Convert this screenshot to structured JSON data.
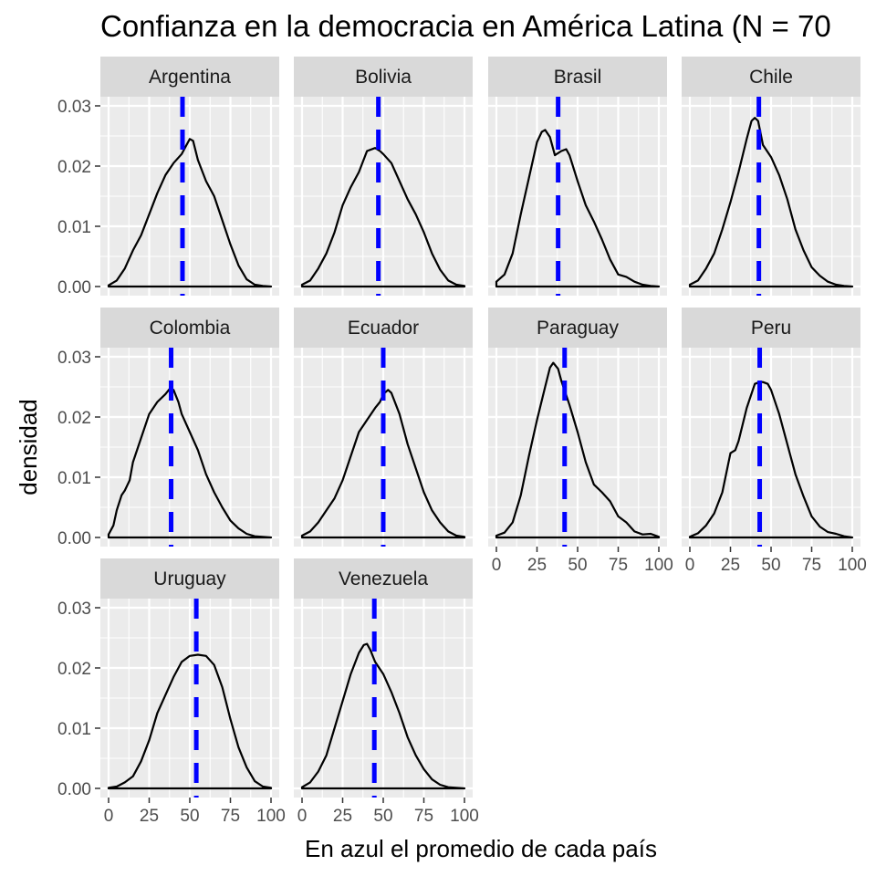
{
  "chart_data": {
    "type": "density",
    "title": "Confianza en la democracia en América Latina (N = 70",
    "xlabel": "En azul el promedio de cada país",
    "ylabel": "densidad",
    "xlim": [
      0,
      100
    ],
    "ylim": [
      0,
      0.03
    ],
    "x_ticks": [
      0,
      25,
      50,
      75,
      100
    ],
    "x_tick_labels": [
      "0",
      "25",
      "50",
      "75",
      "100"
    ],
    "y_ticks": [
      0,
      0.01,
      0.02,
      0.03
    ],
    "y_tick_labels": [
      "0.00",
      "0.01",
      "0.02",
      "0.03"
    ],
    "grid": true,
    "facet_columns": 4,
    "mean_line_color": "#0000ff",
    "curve_color": "#000000",
    "panel_background": "#ebebeb",
    "strip_background": "#d9d9d9",
    "panels": [
      {
        "name": "Argentina",
        "mean": 45.5,
        "x": [
          0,
          5,
          10,
          15,
          20,
          25,
          30,
          35,
          40,
          45,
          48,
          50,
          52,
          55,
          60,
          65,
          70,
          75,
          80,
          85,
          90,
          95,
          100
        ],
        "y": [
          0.0002,
          0.001,
          0.003,
          0.006,
          0.0085,
          0.012,
          0.0155,
          0.0185,
          0.0205,
          0.022,
          0.0235,
          0.0245,
          0.0242,
          0.021,
          0.0175,
          0.015,
          0.011,
          0.007,
          0.0035,
          0.0012,
          0.0003,
          0.0001,
          0.0
        ]
      },
      {
        "name": "Bolivia",
        "mean": 47,
        "x": [
          0,
          5,
          10,
          15,
          20,
          25,
          30,
          35,
          40,
          45,
          48,
          50,
          55,
          60,
          65,
          70,
          75,
          80,
          85,
          90,
          95,
          100
        ],
        "y": [
          0.0003,
          0.001,
          0.003,
          0.0055,
          0.009,
          0.0135,
          0.0165,
          0.019,
          0.0225,
          0.023,
          0.0225,
          0.022,
          0.0205,
          0.0175,
          0.0145,
          0.012,
          0.009,
          0.0055,
          0.0028,
          0.001,
          0.0003,
          0.0001
        ]
      },
      {
        "name": "Brasil",
        "mean": 38,
        "x": [
          0,
          5,
          10,
          15,
          20,
          25,
          28,
          30,
          33,
          36,
          40,
          43,
          45,
          50,
          55,
          60,
          65,
          70,
          75,
          80,
          85,
          90,
          95,
          100
        ],
        "y": [
          0.0008,
          0.002,
          0.0055,
          0.012,
          0.018,
          0.024,
          0.0257,
          0.026,
          0.0248,
          0.0218,
          0.0225,
          0.0228,
          0.0218,
          0.0175,
          0.0135,
          0.0108,
          0.0078,
          0.0045,
          0.002,
          0.0016,
          0.0008,
          0.0003,
          0.0001,
          0.0
        ]
      },
      {
        "name": "Chile",
        "mean": 42.5,
        "x": [
          0,
          5,
          10,
          15,
          20,
          25,
          30,
          35,
          38,
          40,
          42,
          45,
          50,
          55,
          60,
          65,
          70,
          75,
          80,
          85,
          90,
          95,
          100
        ],
        "y": [
          0.0003,
          0.001,
          0.003,
          0.0055,
          0.0095,
          0.014,
          0.019,
          0.0245,
          0.0275,
          0.028,
          0.0275,
          0.0235,
          0.0215,
          0.0185,
          0.0145,
          0.0095,
          0.006,
          0.0032,
          0.0018,
          0.0008,
          0.0003,
          0.0001,
          0.0
        ]
      },
      {
        "name": "Colombia",
        "mean": 38.5,
        "x": [
          0,
          3,
          5,
          8,
          10,
          13,
          15,
          20,
          25,
          30,
          35,
          38,
          40,
          43,
          45,
          50,
          55,
          60,
          65,
          70,
          75,
          80,
          85,
          90,
          95,
          100
        ],
        "y": [
          0.0005,
          0.002,
          0.0045,
          0.007,
          0.0078,
          0.0095,
          0.0125,
          0.0165,
          0.0205,
          0.0225,
          0.0238,
          0.0248,
          0.0245,
          0.0225,
          0.0205,
          0.0175,
          0.0145,
          0.0105,
          0.0075,
          0.005,
          0.0028,
          0.0015,
          0.0006,
          0.0002,
          0.0001,
          0.0
        ]
      },
      {
        "name": "Ecuador",
        "mean": 50,
        "x": [
          0,
          5,
          10,
          15,
          20,
          25,
          30,
          35,
          40,
          45,
          48,
          50,
          53,
          55,
          60,
          65,
          70,
          75,
          80,
          85,
          90,
          95,
          100
        ],
        "y": [
          0.0003,
          0.001,
          0.0025,
          0.0045,
          0.0065,
          0.0095,
          0.0135,
          0.0175,
          0.0195,
          0.0215,
          0.0225,
          0.0238,
          0.0245,
          0.024,
          0.0205,
          0.0155,
          0.0115,
          0.0075,
          0.0045,
          0.0025,
          0.001,
          0.0003,
          0.0001
        ]
      },
      {
        "name": "Paraguay",
        "mean": 42,
        "x": [
          0,
          5,
          10,
          15,
          20,
          25,
          30,
          33,
          35,
          38,
          40,
          45,
          50,
          55,
          60,
          65,
          70,
          75,
          80,
          85,
          90,
          95,
          100
        ],
        "y": [
          0.0003,
          0.0008,
          0.0025,
          0.007,
          0.0135,
          0.0195,
          0.025,
          0.0282,
          0.029,
          0.028,
          0.026,
          0.022,
          0.0175,
          0.0125,
          0.0088,
          0.0075,
          0.006,
          0.0035,
          0.0025,
          0.001,
          0.0005,
          0.0006,
          0.0001
        ]
      },
      {
        "name": "Peru",
        "mean": 43,
        "x": [
          0,
          5,
          10,
          15,
          20,
          25,
          28,
          30,
          35,
          40,
          43,
          45,
          48,
          50,
          55,
          60,
          65,
          70,
          75,
          80,
          85,
          90,
          95,
          100
        ],
        "y": [
          0.0001,
          0.0007,
          0.002,
          0.004,
          0.0075,
          0.014,
          0.0145,
          0.016,
          0.0215,
          0.0255,
          0.0258,
          0.0258,
          0.0255,
          0.0245,
          0.0205,
          0.0155,
          0.0105,
          0.0068,
          0.0035,
          0.0018,
          0.0009,
          0.0006,
          0.0002,
          0.0
        ]
      },
      {
        "name": "Uruguay",
        "mean": 54,
        "x": [
          0,
          5,
          10,
          15,
          20,
          25,
          30,
          35,
          40,
          45,
          50,
          55,
          60,
          65,
          70,
          75,
          80,
          85,
          90,
          95,
          100
        ],
        "y": [
          0.0001,
          0.0003,
          0.001,
          0.002,
          0.0045,
          0.008,
          0.0125,
          0.0155,
          0.0185,
          0.021,
          0.022,
          0.0222,
          0.022,
          0.0205,
          0.0168,
          0.0115,
          0.0068,
          0.0035,
          0.0012,
          0.0003,
          0.0001
        ]
      },
      {
        "name": "Venezuela",
        "mean": 44.5,
        "x": [
          0,
          5,
          10,
          15,
          20,
          25,
          30,
          35,
          38,
          40,
          42,
          45,
          50,
          55,
          60,
          65,
          70,
          75,
          80,
          85,
          90,
          95,
          100
        ],
        "y": [
          0.0002,
          0.001,
          0.0028,
          0.0055,
          0.01,
          0.0145,
          0.019,
          0.0225,
          0.0238,
          0.024,
          0.023,
          0.021,
          0.019,
          0.016,
          0.0125,
          0.0085,
          0.0055,
          0.0032,
          0.0015,
          0.0006,
          0.0002,
          0.0001,
          0.0
        ]
      }
    ]
  }
}
